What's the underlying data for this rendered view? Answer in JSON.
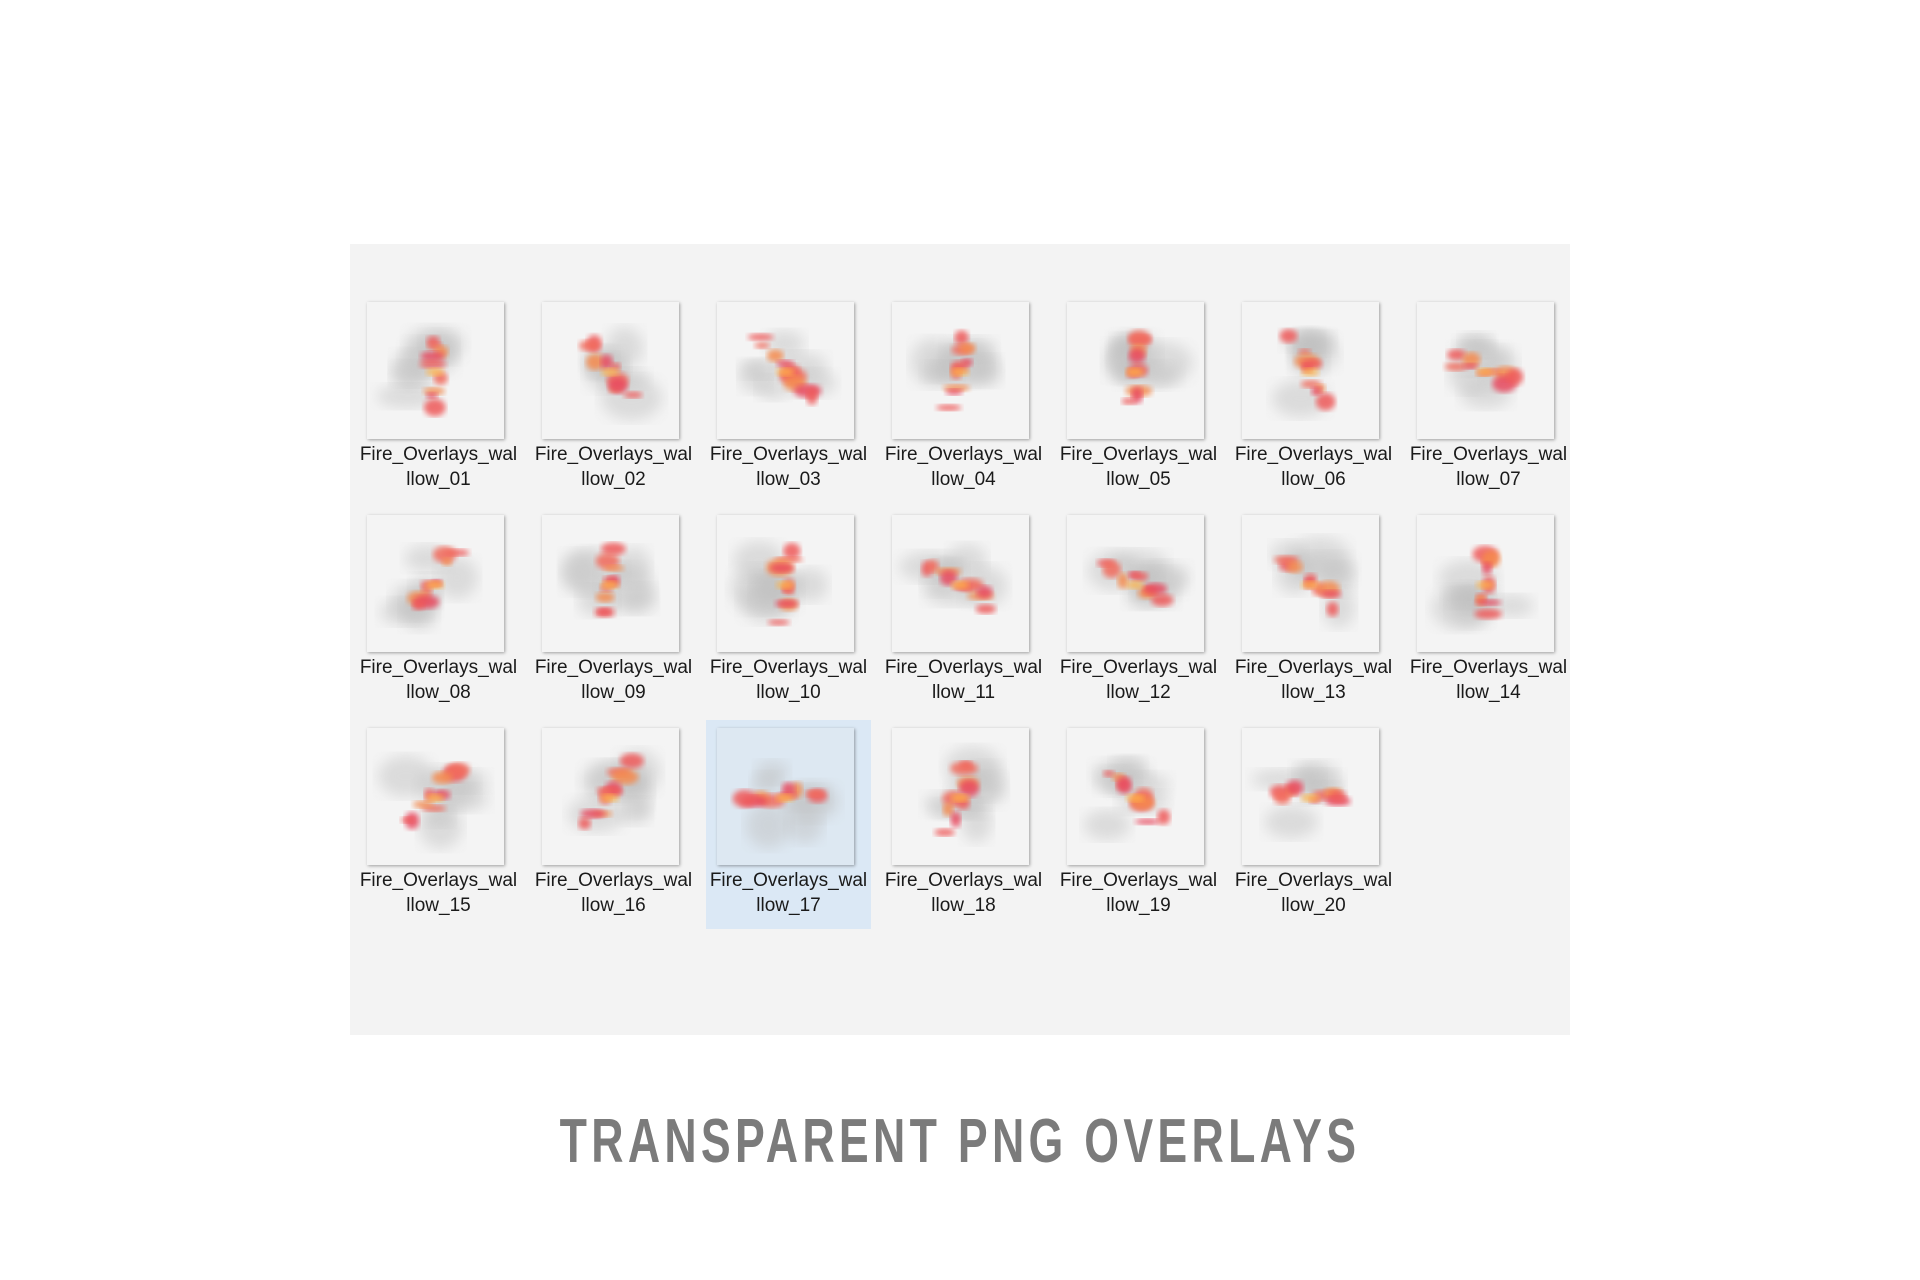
{
  "items": [
    {
      "label": [
        "Fire_Overlays_wal",
        "llow_01"
      ]
    },
    {
      "label": [
        "Fire_Overlays_wal",
        "llow_02"
      ]
    },
    {
      "label": [
        "Fire_Overlays_wal",
        "llow_03"
      ]
    },
    {
      "label": [
        "Fire_Overlays_wal",
        "llow_04"
      ]
    },
    {
      "label": [
        "Fire_Overlays_wal",
        "llow_05"
      ]
    },
    {
      "label": [
        "Fire_Overlays_wal",
        "llow_06"
      ]
    },
    {
      "label": [
        "Fire_Overlays_wal",
        "llow_07"
      ]
    },
    {
      "label": [
        "Fire_Overlays_wal",
        "llow_08"
      ]
    },
    {
      "label": [
        "Fire_Overlays_wal",
        "llow_09"
      ]
    },
    {
      "label": [
        "Fire_Overlays_wal",
        "llow_10"
      ]
    },
    {
      "label": [
        "Fire_Overlays_wal",
        "llow_11"
      ]
    },
    {
      "label": [
        "Fire_Overlays_wal",
        "llow_12"
      ]
    },
    {
      "label": [
        "Fire_Overlays_wal",
        "llow_13"
      ]
    },
    {
      "label": [
        "Fire_Overlays_wal",
        "llow_14"
      ]
    },
    {
      "label": [
        "Fire_Overlays_wal",
        "llow_15"
      ]
    },
    {
      "label": [
        "Fire_Overlays_wal",
        "llow_16"
      ]
    },
    {
      "label": [
        "Fire_Overlays_wal",
        "llow_17"
      ],
      "selected": true
    },
    {
      "label": [
        "Fire_Overlays_wal",
        "llow_18"
      ]
    },
    {
      "label": [
        "Fire_Overlays_wal",
        "llow_19"
      ]
    },
    {
      "label": [
        "Fire_Overlays_wal",
        "llow_20"
      ]
    }
  ],
  "caption": "TRANSPARENT PNG OVERLAYS"
}
